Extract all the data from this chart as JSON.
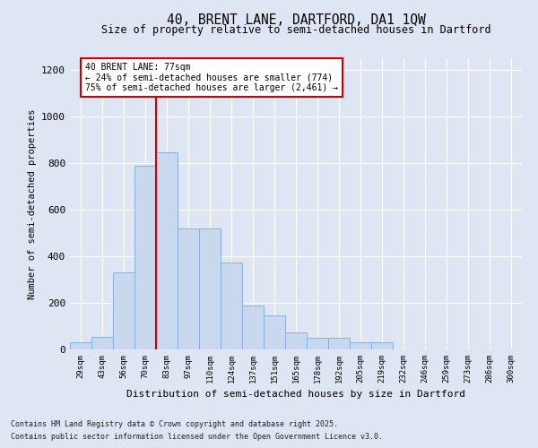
{
  "title_line1": "40, BRENT LANE, DARTFORD, DA1 1QW",
  "title_line2": "Size of property relative to semi-detached houses in Dartford",
  "xlabel": "Distribution of semi-detached houses by size in Dartford",
  "ylabel": "Number of semi-detached properties",
  "categories": [
    "29sqm",
    "43sqm",
    "56sqm",
    "70sqm",
    "83sqm",
    "97sqm",
    "110sqm",
    "124sqm",
    "137sqm",
    "151sqm",
    "165sqm",
    "178sqm",
    "192sqm",
    "205sqm",
    "219sqm",
    "232sqm",
    "246sqm",
    "259sqm",
    "273sqm",
    "286sqm",
    "300sqm"
  ],
  "values": [
    30,
    55,
    330,
    790,
    845,
    520,
    520,
    375,
    190,
    145,
    75,
    50,
    50,
    30,
    30,
    0,
    0,
    0,
    0,
    0,
    0
  ],
  "bar_color": "#c8d8ef",
  "bar_edge_color": "#8ab0d8",
  "vline_x_index": 3.5,
  "vline_color": "#cc0000",
  "annotation_text": "40 BRENT LANE: 77sqm\n← 24% of semi-detached houses are smaller (774)\n75% of semi-detached houses are larger (2,461) →",
  "background_color": "#dde6f2",
  "ylim": [
    0,
    1250
  ],
  "yticks": [
    0,
    200,
    400,
    600,
    800,
    1000,
    1200
  ],
  "footer_line1": "Contains HM Land Registry data © Crown copyright and database right 2025.",
  "footer_line2": "Contains public sector information licensed under the Open Government Licence v3.0."
}
